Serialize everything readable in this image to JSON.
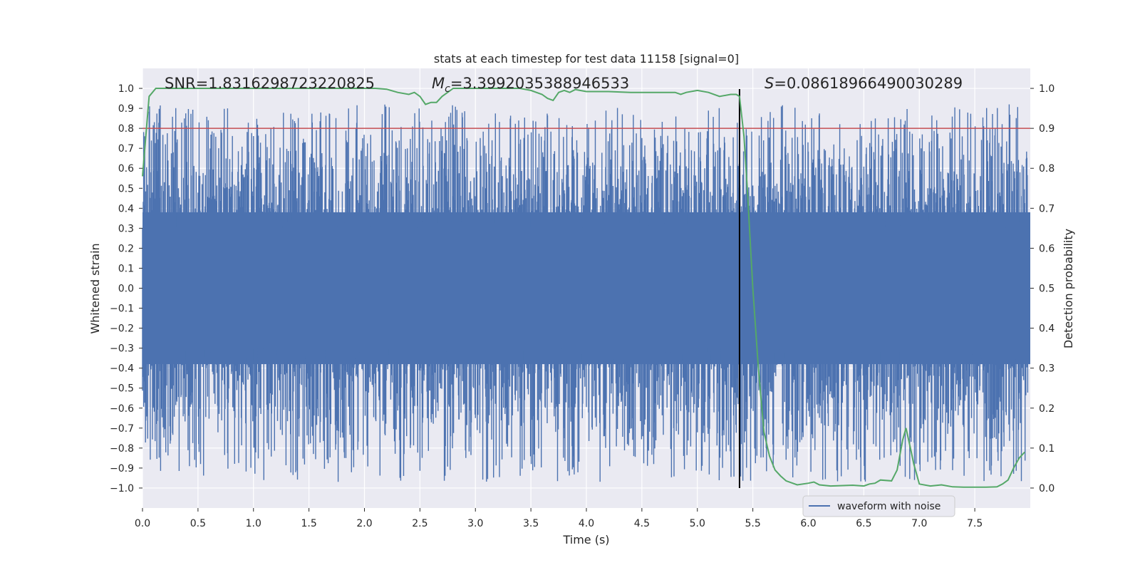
{
  "chart_data": {
    "type": "line",
    "title": "stats at each timestep for test data 11158 [signal=0]",
    "xlabel": "Time (s)",
    "ylabel": "Whitened strain",
    "y2label": "Detection probability",
    "xlim": [
      0.0,
      8.0
    ],
    "ylim": [
      -1.1,
      1.1
    ],
    "y2lim": [
      -0.05,
      1.05
    ],
    "xticks": [
      0.0,
      0.5,
      1.0,
      1.5,
      2.0,
      2.5,
      3.0,
      3.5,
      4.0,
      4.5,
      5.0,
      5.5,
      6.0,
      6.5,
      7.0,
      7.5
    ],
    "xtick_labels": [
      "0.0",
      "0.5",
      "1.0",
      "1.5",
      "2.0",
      "2.5",
      "3.0",
      "3.5",
      "4.0",
      "4.5",
      "5.0",
      "5.5",
      "6.0",
      "6.5",
      "7.0",
      "7.5"
    ],
    "yticks": [
      1.0,
      0.9,
      0.8,
      0.7,
      0.6,
      0.5,
      0.4,
      0.3,
      0.2,
      0.1,
      0.0,
      -0.1,
      -0.2,
      -0.3,
      -0.4,
      -0.5,
      -0.6,
      -0.7,
      -0.8,
      -0.9,
      -1.0
    ],
    "ytick_labels": [
      "1.0",
      "0.9",
      "0.8",
      "0.7",
      "0.6",
      "0.5",
      "0.4",
      "0.3",
      "0.2",
      "0.1",
      "0.0",
      "−0.1",
      "−0.2",
      "−0.3",
      "−0.4",
      "−0.5",
      "−0.6",
      "−0.7",
      "−0.8",
      "−0.9",
      "−1.0"
    ],
    "y2ticks": [
      1.0,
      0.9,
      0.8,
      0.7,
      0.6,
      0.5,
      0.4,
      0.3,
      0.2,
      0.1,
      0.0
    ],
    "y2tick_labels": [
      "1.0",
      "0.9",
      "0.8",
      "0.7",
      "0.6",
      "0.5",
      "0.4",
      "0.3",
      "0.2",
      "0.1",
      "0.0"
    ],
    "grid": true,
    "legend": {
      "location": "lower-right",
      "entries": [
        "waveform with noise"
      ]
    },
    "colors": {
      "waveform": "#4c72b0",
      "probability": "#55a868",
      "threshold": "#c44e52",
      "marker": "#000000",
      "plot_background": "#eaeaf2",
      "grid": "#ffffff"
    },
    "series": [
      {
        "name": "waveform with noise",
        "axis": "left",
        "kind": "noise",
        "fill_envelope": [
          -0.38,
          0.38
        ],
        "peak_range": [
          -0.97,
          0.92
        ]
      },
      {
        "name": "detection probability",
        "axis": "right",
        "x": [
          0.0,
          0.06,
          0.12,
          0.3,
          0.6,
          0.9,
          1.2,
          1.5,
          1.8,
          2.1,
          2.2,
          2.3,
          2.4,
          2.45,
          2.5,
          2.55,
          2.6,
          2.65,
          2.7,
          2.8,
          2.9,
          3.0,
          3.2,
          3.4,
          3.5,
          3.6,
          3.65,
          3.7,
          3.75,
          3.8,
          3.85,
          3.9,
          4.0,
          4.2,
          4.4,
          4.6,
          4.8,
          4.85,
          4.9,
          5.0,
          5.1,
          5.2,
          5.3,
          5.35,
          5.38,
          5.42,
          5.45,
          5.5,
          5.55,
          5.6,
          5.65,
          5.7,
          5.75,
          5.8,
          5.9,
          6.0,
          6.05,
          6.1,
          6.2,
          6.4,
          6.5,
          6.55,
          6.6,
          6.65,
          6.75,
          6.8,
          6.85,
          6.88,
          6.92,
          6.95,
          7.0,
          7.1,
          7.2,
          7.3,
          7.4,
          7.6,
          7.7,
          7.75,
          7.8,
          7.85,
          7.9,
          7.95
        ],
        "values": [
          0.78,
          0.98,
          1.0,
          1.0,
          1.0,
          1.0,
          1.0,
          1.0,
          1.0,
          1.0,
          0.998,
          0.99,
          0.985,
          0.99,
          0.98,
          0.96,
          0.965,
          0.965,
          0.98,
          1.0,
          1.0,
          1.0,
          1.0,
          1.0,
          0.995,
          0.985,
          0.975,
          0.97,
          0.99,
          0.995,
          0.99,
          0.997,
          0.992,
          0.992,
          0.99,
          0.99,
          0.99,
          0.985,
          0.99,
          0.995,
          0.99,
          0.98,
          0.985,
          0.985,
          0.98,
          0.88,
          0.75,
          0.5,
          0.3,
          0.14,
          0.08,
          0.045,
          0.03,
          0.018,
          0.008,
          0.012,
          0.015,
          0.008,
          0.005,
          0.007,
          0.005,
          0.01,
          0.012,
          0.02,
          0.018,
          0.045,
          0.12,
          0.15,
          0.1,
          0.06,
          0.01,
          0.005,
          0.008,
          0.003,
          0.002,
          0.002,
          0.003,
          0.01,
          0.02,
          0.05,
          0.075,
          0.09
        ]
      }
    ],
    "threshold_line": {
      "axis": "right",
      "value": 0.9
    },
    "marker_line": {
      "x": 5.38,
      "label": ""
    },
    "annotations": {
      "snr": {
        "prefix": "SNR=",
        "value": "1.8316298723220825"
      },
      "mc": {
        "symbol": "M",
        "subscript": "c",
        "value": "=3.3992035388946533"
      },
      "s": {
        "symbol": "S",
        "value": "=0.08618966490030289"
      }
    }
  }
}
